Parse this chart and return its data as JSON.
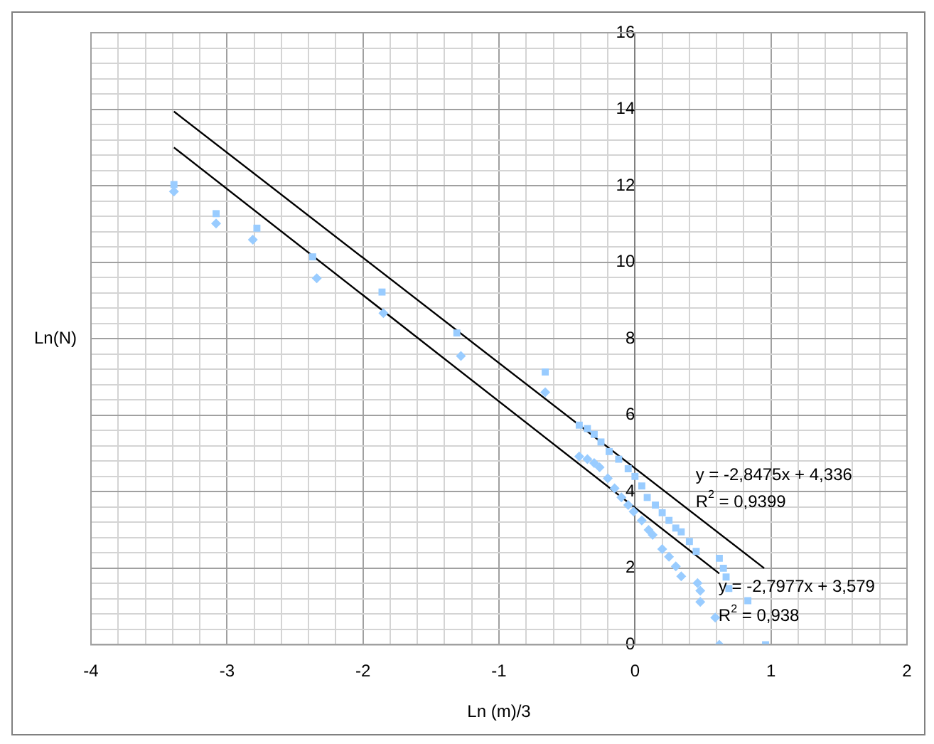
{
  "chart_data": {
    "type": "scatter",
    "xlabel": "Ln (m)/3",
    "ylabel": "Ln(N)",
    "xlim": [
      -4,
      2
    ],
    "ylim": [
      0,
      16
    ],
    "xticks": [
      -4,
      {
        "value": -3.8,
        "label": null
      },
      {
        "value": -3.6,
        "label": null
      },
      {
        "value": -3.4,
        "label": null
      },
      {
        "value": -3.2,
        "label": null
      },
      -3,
      {
        "value": -2.8,
        "label": null
      },
      {
        "value": -2.6,
        "label": null
      },
      {
        "value": -2.4,
        "label": null
      },
      {
        "value": -2.2,
        "label": null
      },
      -2,
      {
        "value": -1.8,
        "label": null
      },
      {
        "value": -1.6,
        "label": null
      },
      {
        "value": -1.4,
        "label": null
      },
      {
        "value": -1.2,
        "label": null
      },
      -1,
      {
        "value": -0.8,
        "label": null
      },
      {
        "value": -0.6,
        "label": null
      },
      {
        "value": -0.4,
        "label": null
      },
      {
        "value": -0.2,
        "label": null
      },
      0,
      {
        "value": 0.2,
        "label": null
      },
      {
        "value": 0.4,
        "label": null
      },
      {
        "value": 0.6,
        "label": null
      },
      {
        "value": 0.8,
        "label": null
      },
      1,
      {
        "value": 1.2,
        "label": null
      },
      {
        "value": 1.4,
        "label": null
      },
      {
        "value": 1.6,
        "label": null
      },
      {
        "value": 1.8,
        "label": null
      },
      2
    ],
    "yticks": [
      0,
      {
        "value": 0.4,
        "label": null
      },
      {
        "value": 0.8,
        "label": null
      },
      {
        "value": 1.2,
        "label": null
      },
      {
        "value": 1.6,
        "label": null
      },
      2,
      {
        "value": 2.4,
        "label": null
      },
      {
        "value": 2.8,
        "label": null
      },
      {
        "value": 3.2,
        "label": null
      },
      {
        "value": 3.6,
        "label": null
      },
      4,
      {
        "value": 4.4,
        "label": null
      },
      {
        "value": 4.8,
        "label": null
      },
      {
        "value": 5.2,
        "label": null
      },
      {
        "value": 5.6,
        "label": null
      },
      6,
      {
        "value": 6.4,
        "label": null
      },
      {
        "value": 6.8,
        "label": null
      },
      {
        "value": 7.2,
        "label": null
      },
      {
        "value": 7.6,
        "label": null
      },
      8,
      {
        "value": 8.4,
        "label": null
      },
      {
        "value": 8.8,
        "label": null
      },
      {
        "value": 9.2,
        "label": null
      },
      {
        "value": 9.6,
        "label": null
      },
      10,
      {
        "value": 10.4,
        "label": null
      },
      {
        "value": 10.8,
        "label": null
      },
      {
        "value": 11.2,
        "label": null
      },
      {
        "value": 11.6,
        "label": null
      },
      12,
      {
        "value": 12.4,
        "label": null
      },
      {
        "value": 12.8,
        "label": null
      },
      {
        "value": 13.2,
        "label": null
      },
      {
        "value": 13.6,
        "label": null
      },
      14,
      {
        "value": 14.4,
        "label": null
      },
      {
        "value": 14.8,
        "label": null
      },
      {
        "value": 15.2,
        "label": null
      },
      {
        "value": 15.6,
        "label": null
      },
      16
    ],
    "grid": true,
    "legend": false,
    "series": [
      {
        "type": "scatter",
        "marker": "square",
        "color": "#99ccff",
        "x": [
          -3.39,
          -3.08,
          -2.78,
          -2.37,
          -1.86,
          -1.31,
          -0.66,
          -0.41,
          -0.35,
          -0.3,
          -0.25,
          -0.19,
          -0.12,
          -0.05,
          0.0,
          0.05,
          0.09,
          0.15,
          0.2,
          0.25,
          0.3,
          0.34,
          0.4,
          0.45,
          0.62,
          0.65,
          0.67,
          0.69,
          0.83,
          0.96
        ],
        "values": [
          12.03,
          11.27,
          10.89,
          10.14,
          9.22,
          8.15,
          7.13,
          5.74,
          5.65,
          5.5,
          5.3,
          5.05,
          4.85,
          4.6,
          4.4,
          4.15,
          3.85,
          3.65,
          3.45,
          3.25,
          3.05,
          2.95,
          2.7,
          2.44,
          2.26,
          2.0,
          1.77,
          1.47,
          1.15,
          0.0
        ]
      },
      {
        "type": "scatter",
        "marker": "diamond",
        "color": "#99ccff",
        "x": [
          -3.39,
          -3.08,
          -2.81,
          -2.34,
          -1.85,
          -1.28,
          -0.66,
          -0.41,
          -0.35,
          -0.3,
          -0.26,
          -0.2,
          -0.15,
          -0.1,
          -0.05,
          -0.01,
          0.05,
          0.1,
          0.13,
          0.2,
          0.25,
          0.3,
          0.34,
          0.46,
          0.48,
          0.48,
          0.59,
          0.62
        ],
        "values": [
          11.85,
          11.01,
          10.59,
          9.58,
          8.67,
          7.55,
          6.6,
          4.92,
          4.85,
          4.75,
          4.64,
          4.35,
          4.09,
          3.85,
          3.65,
          3.48,
          3.25,
          3.0,
          2.87,
          2.5,
          2.3,
          2.05,
          1.79,
          1.61,
          1.41,
          1.12,
          0.71,
          0.0
        ]
      },
      {
        "type": "line",
        "marker": "none",
        "color": "#000000",
        "x": [
          -3.39,
          0.95
        ],
        "values": [
          13.94,
          2.0
        ]
      },
      {
        "type": "line",
        "marker": "none",
        "color": "#000000",
        "x": [
          -3.39,
          0.62
        ],
        "values": [
          13.0,
          1.86
        ]
      }
    ],
    "annotations": [
      "y = -2,8475x + 4,336",
      "R$^{2}$ = 0,9399",
      "y = -2,7977x + 3,579",
      "R$^{2}$ = 0,938"
    ]
  }
}
